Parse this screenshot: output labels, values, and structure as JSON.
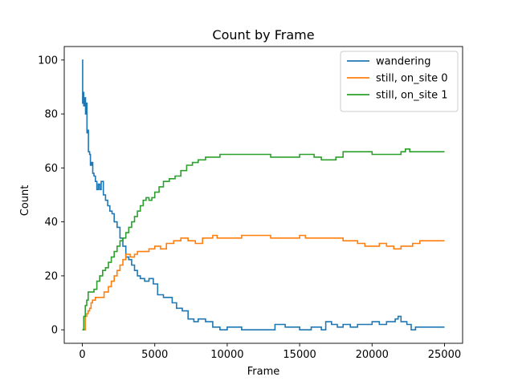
{
  "chart_data": {
    "type": "line",
    "title": "Count by Frame",
    "xlabel": "Frame",
    "ylabel": "Count",
    "xlim": [
      -1250,
      26250
    ],
    "ylim": [
      -5,
      105
    ],
    "xticks": [
      0,
      5000,
      10000,
      15000,
      20000,
      25000
    ],
    "yticks": [
      0,
      20,
      40,
      60,
      80,
      100
    ],
    "legend_position": "upper-right",
    "grid": false,
    "step": true,
    "series": [
      {
        "name": "wandering",
        "color": "#1f77b4",
        "points": [
          [
            0,
            100
          ],
          [
            20,
            84
          ],
          [
            60,
            88
          ],
          [
            100,
            83
          ],
          [
            160,
            86
          ],
          [
            220,
            80
          ],
          [
            280,
            84
          ],
          [
            320,
            73
          ],
          [
            380,
            74
          ],
          [
            420,
            66
          ],
          [
            500,
            65
          ],
          [
            560,
            61
          ],
          [
            640,
            62
          ],
          [
            720,
            58
          ],
          [
            800,
            57
          ],
          [
            900,
            55
          ],
          [
            1000,
            52
          ],
          [
            1100,
            54
          ],
          [
            1200,
            52
          ],
          [
            1300,
            55
          ],
          [
            1450,
            50
          ],
          [
            1600,
            48
          ],
          [
            1750,
            46
          ],
          [
            1900,
            44
          ],
          [
            2050,
            43
          ],
          [
            2200,
            40
          ],
          [
            2400,
            38
          ],
          [
            2600,
            34
          ],
          [
            2800,
            31
          ],
          [
            3000,
            27
          ],
          [
            3200,
            26
          ],
          [
            3400,
            24
          ],
          [
            3600,
            22
          ],
          [
            3800,
            20
          ],
          [
            4000,
            19
          ],
          [
            4300,
            18
          ],
          [
            4600,
            19
          ],
          [
            4900,
            17
          ],
          [
            5200,
            13
          ],
          [
            5600,
            12
          ],
          [
            5900,
            12
          ],
          [
            6200,
            10
          ],
          [
            6500,
            8
          ],
          [
            6900,
            7
          ],
          [
            7300,
            4
          ],
          [
            7700,
            3
          ],
          [
            8000,
            4
          ],
          [
            8500,
            3
          ],
          [
            8800,
            3
          ],
          [
            9000,
            1
          ],
          [
            9500,
            0
          ],
          [
            10000,
            1
          ],
          [
            11000,
            0
          ],
          [
            12000,
            0
          ],
          [
            13000,
            0
          ],
          [
            13300,
            2
          ],
          [
            14000,
            1
          ],
          [
            15000,
            0
          ],
          [
            15800,
            1
          ],
          [
            16500,
            0
          ],
          [
            16800,
            3
          ],
          [
            17200,
            2
          ],
          [
            17600,
            1
          ],
          [
            18000,
            2
          ],
          [
            18500,
            1
          ],
          [
            19000,
            2
          ],
          [
            20000,
            3
          ],
          [
            20500,
            2
          ],
          [
            21000,
            3
          ],
          [
            21600,
            4
          ],
          [
            21800,
            5
          ],
          [
            22000,
            3
          ],
          [
            22400,
            2
          ],
          [
            22700,
            0
          ],
          [
            23000,
            1
          ],
          [
            24000,
            1
          ],
          [
            25000,
            1
          ]
        ]
      },
      {
        "name": "still, on_site 0",
        "color": "#ff7f0e",
        "points": [
          [
            0,
            0
          ],
          [
            200,
            5
          ],
          [
            300,
            6
          ],
          [
            400,
            7
          ],
          [
            500,
            8
          ],
          [
            600,
            10
          ],
          [
            700,
            11
          ],
          [
            900,
            12
          ],
          [
            1200,
            12
          ],
          [
            1500,
            14
          ],
          [
            1800,
            16
          ],
          [
            2000,
            18
          ],
          [
            2200,
            20
          ],
          [
            2400,
            22
          ],
          [
            2600,
            24
          ],
          [
            2800,
            26
          ],
          [
            3000,
            28
          ],
          [
            3300,
            27
          ],
          [
            3600,
            28
          ],
          [
            3800,
            29
          ],
          [
            4200,
            29
          ],
          [
            4600,
            30
          ],
          [
            5000,
            31
          ],
          [
            5400,
            30
          ],
          [
            5800,
            32
          ],
          [
            6300,
            33
          ],
          [
            6800,
            34
          ],
          [
            7300,
            33
          ],
          [
            7800,
            32
          ],
          [
            8300,
            34
          ],
          [
            8800,
            34
          ],
          [
            9000,
            35
          ],
          [
            9300,
            34
          ],
          [
            10000,
            34
          ],
          [
            11000,
            35
          ],
          [
            12000,
            35
          ],
          [
            12500,
            35
          ],
          [
            13000,
            34
          ],
          [
            14000,
            34
          ],
          [
            15000,
            35
          ],
          [
            15400,
            34
          ],
          [
            16000,
            34
          ],
          [
            17000,
            34
          ],
          [
            18000,
            33
          ],
          [
            19000,
            32
          ],
          [
            19500,
            31
          ],
          [
            20000,
            31
          ],
          [
            20500,
            32
          ],
          [
            21000,
            31
          ],
          [
            21500,
            30
          ],
          [
            22000,
            31
          ],
          [
            22800,
            32
          ],
          [
            23300,
            33
          ],
          [
            24000,
            33
          ],
          [
            25000,
            33
          ]
        ]
      },
      {
        "name": "still, on_site 1",
        "color": "#2ca02c",
        "points": [
          [
            0,
            0
          ],
          [
            100,
            5
          ],
          [
            200,
            9
          ],
          [
            300,
            11
          ],
          [
            400,
            14
          ],
          [
            600,
            14
          ],
          [
            800,
            15
          ],
          [
            1000,
            18
          ],
          [
            1200,
            20
          ],
          [
            1400,
            22
          ],
          [
            1600,
            23
          ],
          [
            1800,
            25
          ],
          [
            2000,
            27
          ],
          [
            2200,
            29
          ],
          [
            2400,
            31
          ],
          [
            2600,
            33
          ],
          [
            2800,
            34
          ],
          [
            3000,
            36
          ],
          [
            3200,
            38
          ],
          [
            3400,
            40
          ],
          [
            3600,
            42
          ],
          [
            3800,
            44
          ],
          [
            4000,
            46
          ],
          [
            4200,
            48
          ],
          [
            4400,
            49
          ],
          [
            4600,
            48
          ],
          [
            4800,
            49
          ],
          [
            5000,
            51
          ],
          [
            5300,
            53
          ],
          [
            5600,
            55
          ],
          [
            6000,
            56
          ],
          [
            6400,
            57
          ],
          [
            6800,
            59
          ],
          [
            7200,
            61
          ],
          [
            7600,
            62
          ],
          [
            8000,
            63
          ],
          [
            8500,
            64
          ],
          [
            9000,
            64
          ],
          [
            9500,
            65
          ],
          [
            10000,
            65
          ],
          [
            11000,
            65
          ],
          [
            12000,
            65
          ],
          [
            13000,
            64
          ],
          [
            14000,
            64
          ],
          [
            15000,
            65
          ],
          [
            15500,
            65
          ],
          [
            16000,
            64
          ],
          [
            16500,
            63
          ],
          [
            17500,
            64
          ],
          [
            18000,
            66
          ],
          [
            19000,
            66
          ],
          [
            20000,
            65
          ],
          [
            21000,
            65
          ],
          [
            22000,
            66
          ],
          [
            22300,
            67
          ],
          [
            22600,
            66
          ],
          [
            23000,
            66
          ],
          [
            24000,
            66
          ],
          [
            25000,
            66
          ]
        ]
      }
    ]
  }
}
